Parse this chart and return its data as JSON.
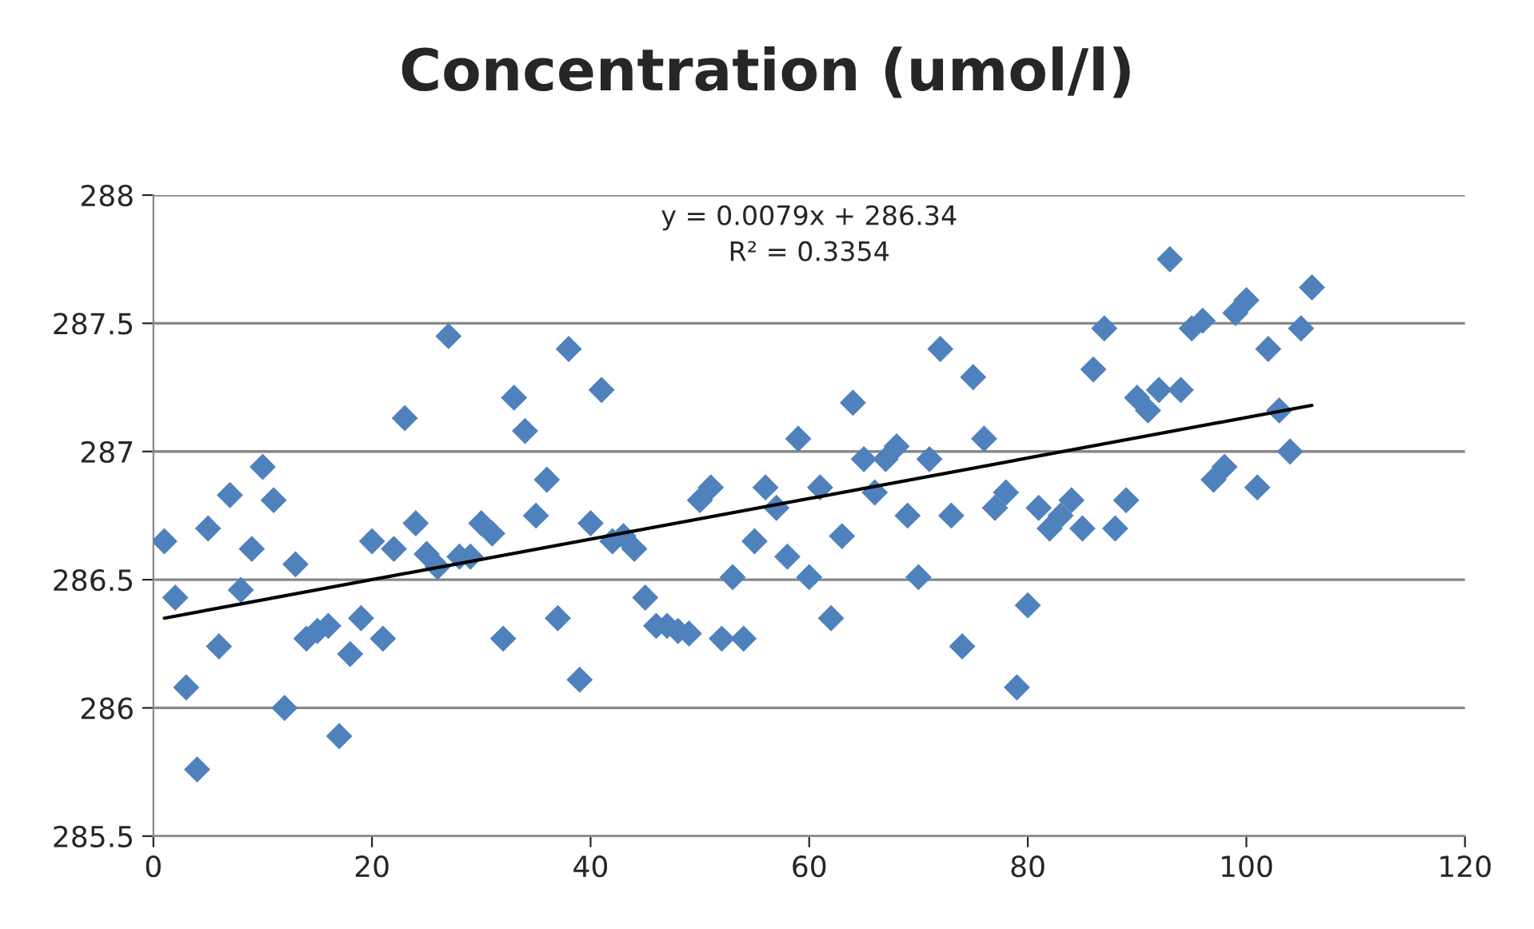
{
  "chart_data": {
    "type": "scatter",
    "title": "Concentration (umol/l)",
    "xlim": [
      0,
      120
    ],
    "xticks": [
      0,
      20,
      40,
      60,
      80,
      100,
      120
    ],
    "ylim": [
      285.5,
      288
    ],
    "yticks": [
      285.5,
      286,
      286.5,
      287,
      287.5,
      288
    ],
    "grid": "y",
    "marker": "diamond",
    "annotations": [
      "y = 0.0079x + 286.34\nR² = 0.3354"
    ],
    "series": [
      {
        "color": "#4f81bd",
        "x": [
          1,
          2,
          3,
          4,
          5,
          6,
          7,
          8,
          9,
          10,
          11,
          12,
          13,
          14,
          15,
          16,
          17,
          18,
          19,
          20,
          21,
          22,
          23,
          24,
          25,
          26,
          27,
          28,
          29,
          30,
          31,
          32,
          33,
          34,
          35,
          36,
          37,
          38,
          39,
          40,
          41,
          42,
          43,
          44,
          45,
          46,
          47,
          48,
          49,
          50,
          51,
          52,
          53,
          54,
          55,
          56,
          57,
          58,
          59,
          60,
          61,
          62,
          63,
          64,
          65,
          66,
          67,
          68,
          69,
          70,
          71,
          72,
          73,
          74,
          75,
          76,
          77,
          78,
          79,
          80,
          81,
          82,
          83,
          84,
          85,
          86,
          87,
          88,
          89,
          90,
          91,
          92,
          93,
          94,
          95,
          96,
          97,
          98,
          99,
          100,
          101,
          102,
          103,
          104,
          105,
          106
        ],
        "values": [
          286.65,
          286.43,
          286.08,
          285.76,
          286.7,
          286.24,
          286.83,
          286.46,
          286.62,
          286.94,
          286.81,
          286.0,
          286.56,
          286.27,
          286.3,
          286.32,
          285.89,
          286.21,
          286.35,
          286.65,
          286.27,
          286.62,
          287.13,
          286.72,
          286.6,
          286.55,
          287.45,
          286.59,
          286.59,
          286.72,
          286.68,
          286.27,
          287.21,
          287.08,
          286.75,
          286.89,
          286.35,
          287.4,
          286.11,
          286.72,
          287.24,
          286.65,
          286.67,
          286.62,
          286.43,
          286.32,
          286.32,
          286.3,
          286.29,
          286.81,
          286.86,
          286.27,
          286.51,
          286.27,
          286.65,
          286.86,
          286.78,
          286.59,
          287.05,
          286.51,
          286.86,
          286.35,
          286.67,
          287.19,
          286.97,
          286.84,
          286.97,
          287.02,
          286.75,
          286.51,
          286.97,
          287.4,
          286.75,
          286.24,
          287.29,
          287.05,
          286.78,
          286.84,
          286.08,
          286.4,
          286.78,
          286.7,
          286.75,
          286.81,
          286.7,
          287.32,
          287.48,
          286.7,
          286.81,
          287.21,
          287.16,
          287.24,
          287.75,
          287.24,
          287.48,
          287.51,
          286.89,
          286.94,
          287.54,
          287.59,
          286.86,
          287.4,
          287.16,
          287.0,
          287.48,
          287.64
        ]
      },
      {
        "type": "line",
        "color": "#000000",
        "line_style": "solid",
        "marker": "none",
        "x": [
          1,
          106
        ],
        "values": [
          286.35,
          287.18
        ]
      }
    ]
  }
}
